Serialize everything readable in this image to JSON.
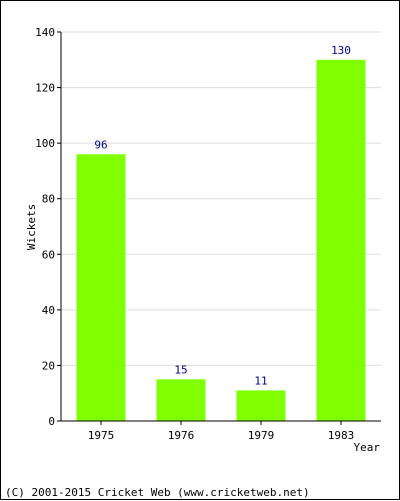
{
  "chart_data": {
    "type": "bar",
    "categories": [
      "1975",
      "1976",
      "1979",
      "1983"
    ],
    "values": [
      96,
      15,
      11,
      130
    ],
    "title": "",
    "xlabel": "Year",
    "ylabel": "Wickets",
    "ylim": [
      0,
      140
    ],
    "yticks": [
      0,
      20,
      40,
      60,
      80,
      100,
      120,
      140
    ],
    "grid": true,
    "bar_color": "#7fff00",
    "label_color": "#000080",
    "grid_color": "#dddddd"
  },
  "footer": {
    "copyright": "(C) 2001-2015 Cricket Web (www.cricketweb.net)"
  }
}
